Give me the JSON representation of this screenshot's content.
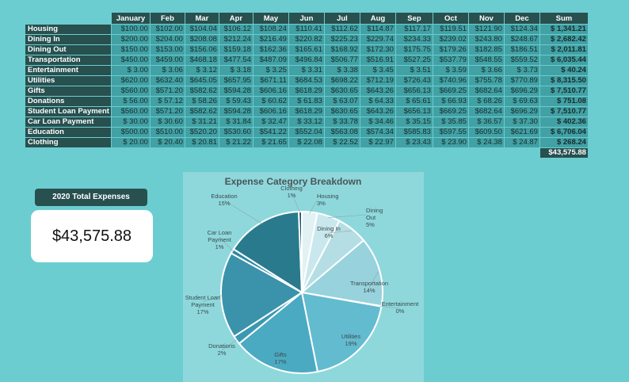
{
  "table": {
    "headers": [
      "January",
      "Feb",
      "Mar",
      "Apr",
      "May",
      "Jun",
      "Jul",
      "Aug",
      "Sep",
      "Oct",
      "Nov",
      "Dec",
      "Sum"
    ],
    "rows": [
      {
        "name": "Housing",
        "values": [
          "$100.00",
          "$102.00",
          "$104.04",
          "$106.12",
          "$108.24",
          "$110.41",
          "$112.62",
          "$114.87",
          "$117.17",
          "$119.51",
          "$121.90",
          "$124.34",
          "$ 1,341.21"
        ]
      },
      {
        "name": "Dining In",
        "values": [
          "$200.00",
          "$204.00",
          "$208.08",
          "$212.24",
          "$216.49",
          "$220.82",
          "$225.23",
          "$229.74",
          "$234.33",
          "$239.02",
          "$243.80",
          "$248.67",
          "$ 2,682.42"
        ]
      },
      {
        "name": "Dining Out",
        "values": [
          "$150.00",
          "$153.00",
          "$156.06",
          "$159.18",
          "$162.36",
          "$165.61",
          "$168.92",
          "$172.30",
          "$175.75",
          "$179.26",
          "$182.85",
          "$186.51",
          "$ 2,011.81"
        ]
      },
      {
        "name": "Transportation",
        "values": [
          "$450.00",
          "$459.00",
          "$468.18",
          "$477.54",
          "$487.09",
          "$496.84",
          "$506.77",
          "$516.91",
          "$527.25",
          "$537.79",
          "$548.55",
          "$559.52",
          "$ 6,035.44"
        ]
      },
      {
        "name": "Entertainment",
        "values": [
          "$ 3.00",
          "$ 3.06",
          "$ 3.12",
          "$ 3.18",
          "$ 3.25",
          "$ 3.31",
          "$ 3.38",
          "$ 3.45",
          "$ 3.51",
          "$ 3.59",
          "$ 3.66",
          "$ 3.73",
          "$ 40.24"
        ]
      },
      {
        "name": "Utilities",
        "values": [
          "$620.00",
          "$632.40",
          "$645.05",
          "$657.95",
          "$671.11",
          "$684.53",
          "$698.22",
          "$712.19",
          "$726.43",
          "$740.96",
          "$755.78",
          "$770.89",
          "$ 8,315.50"
        ]
      },
      {
        "name": "Gifts",
        "values": [
          "$560.00",
          "$571.20",
          "$582.62",
          "$594.28",
          "$606.16",
          "$618.29",
          "$630.65",
          "$643.26",
          "$656.13",
          "$669.25",
          "$682.64",
          "$696.29",
          "$ 7,510.77"
        ]
      },
      {
        "name": "Donations",
        "values": [
          "$ 56.00",
          "$ 57.12",
          "$ 58.26",
          "$ 59.43",
          "$ 60.62",
          "$ 61.83",
          "$ 63.07",
          "$ 64.33",
          "$ 65.61",
          "$ 66.93",
          "$ 68.26",
          "$ 69.63",
          "$ 751.08"
        ]
      },
      {
        "name": "Student Loan Payment",
        "values": [
          "$560.00",
          "$571.20",
          "$582.62",
          "$594.28",
          "$606.16",
          "$618.29",
          "$630.65",
          "$643.26",
          "$656.13",
          "$669.25",
          "$682.64",
          "$696.29",
          "$ 7,510.77"
        ]
      },
      {
        "name": "Car Loan Payment",
        "values": [
          "$ 30.00",
          "$ 30.60",
          "$ 31.21",
          "$ 31.84",
          "$ 32.47",
          "$ 33.12",
          "$ 33.78",
          "$ 34.46",
          "$ 35.15",
          "$ 35.85",
          "$ 36.57",
          "$ 37.30",
          "$ 402.36"
        ]
      },
      {
        "name": "Education",
        "values": [
          "$500.00",
          "$510.00",
          "$520.20",
          "$530.60",
          "$541.22",
          "$552.04",
          "$563.08",
          "$574.34",
          "$585.83",
          "$597.55",
          "$609.50",
          "$621.69",
          "$ 6,706.04"
        ]
      },
      {
        "name": "Clothing",
        "values": [
          "$ 20.00",
          "$ 20.40",
          "$ 20.81",
          "$ 21.22",
          "$ 21.65",
          "$ 22.08",
          "$ 22.52",
          "$ 22.97",
          "$ 23.43",
          "$ 23.90",
          "$ 24.38",
          "$ 24.87",
          "$ 268.24"
        ]
      }
    ],
    "grand_total": "$43,575.88"
  },
  "summary": {
    "label": "2020 Total Expenses",
    "value": "$43,575.88"
  },
  "chart_data": {
    "type": "pie",
    "title": "Expense Category Breakdown",
    "slices": [
      {
        "label": "Housing",
        "value": 1341.21,
        "pct": "3%",
        "color": "#e2f2f4",
        "lab": [
          400,
          250,
          "start"
        ]
      },
      {
        "label": "Dining Out",
        "value": 2011.81,
        "pct": "5%",
        "color": "#c9e8ed",
        "lab": [
          462,
          268,
          "start"
        ]
      },
      {
        "label": "Dining In",
        "value": 2682.42,
        "pct": "6%",
        "color": "#b4dee4",
        "lab": [
          415,
          291,
          "middle"
        ]
      },
      {
        "label": "Transportation",
        "value": 6035.44,
        "pct": "14%",
        "color": "#98d2dc",
        "lab": [
          466,
          360,
          "middle"
        ]
      },
      {
        "label": "Entertainment",
        "value": 40.24,
        "pct": "0%",
        "color": "#7fc6d1",
        "lab": [
          505,
          386,
          "middle"
        ]
      },
      {
        "label": "Utilities",
        "value": 8315.5,
        "pct": "19%",
        "color": "#63bbd0",
        "lab": [
          443,
          427,
          "middle"
        ]
      },
      {
        "label": "Gifts",
        "value": 7510.77,
        "pct": "17%",
        "color": "#4aaac2",
        "lab": [
          354,
          450,
          "middle"
        ]
      },
      {
        "label": "Donations",
        "value": 751.08,
        "pct": "2%",
        "color": "#3a98b1",
        "lab": [
          280,
          439,
          "middle"
        ]
      },
      {
        "label": "Student Loan Payment",
        "value": 7510.77,
        "pct": "17%",
        "color": "#3a93ab",
        "lab": [
          256,
          378,
          "middle"
        ]
      },
      {
        "label": "Car Loan Payment",
        "value": 402.36,
        "pct": "1%",
        "color": "#2f87a0",
        "lab": [
          277,
          296,
          "middle"
        ]
      },
      {
        "label": "Education",
        "value": 6706.04,
        "pct": "15%",
        "color": "#2a7a8d",
        "lab": [
          283,
          250,
          "middle"
        ]
      },
      {
        "label": "Clothing",
        "value": 268.24,
        "pct": "1%",
        "color": "#1d5560",
        "lab": [
          368,
          240,
          "middle"
        ]
      }
    ]
  }
}
